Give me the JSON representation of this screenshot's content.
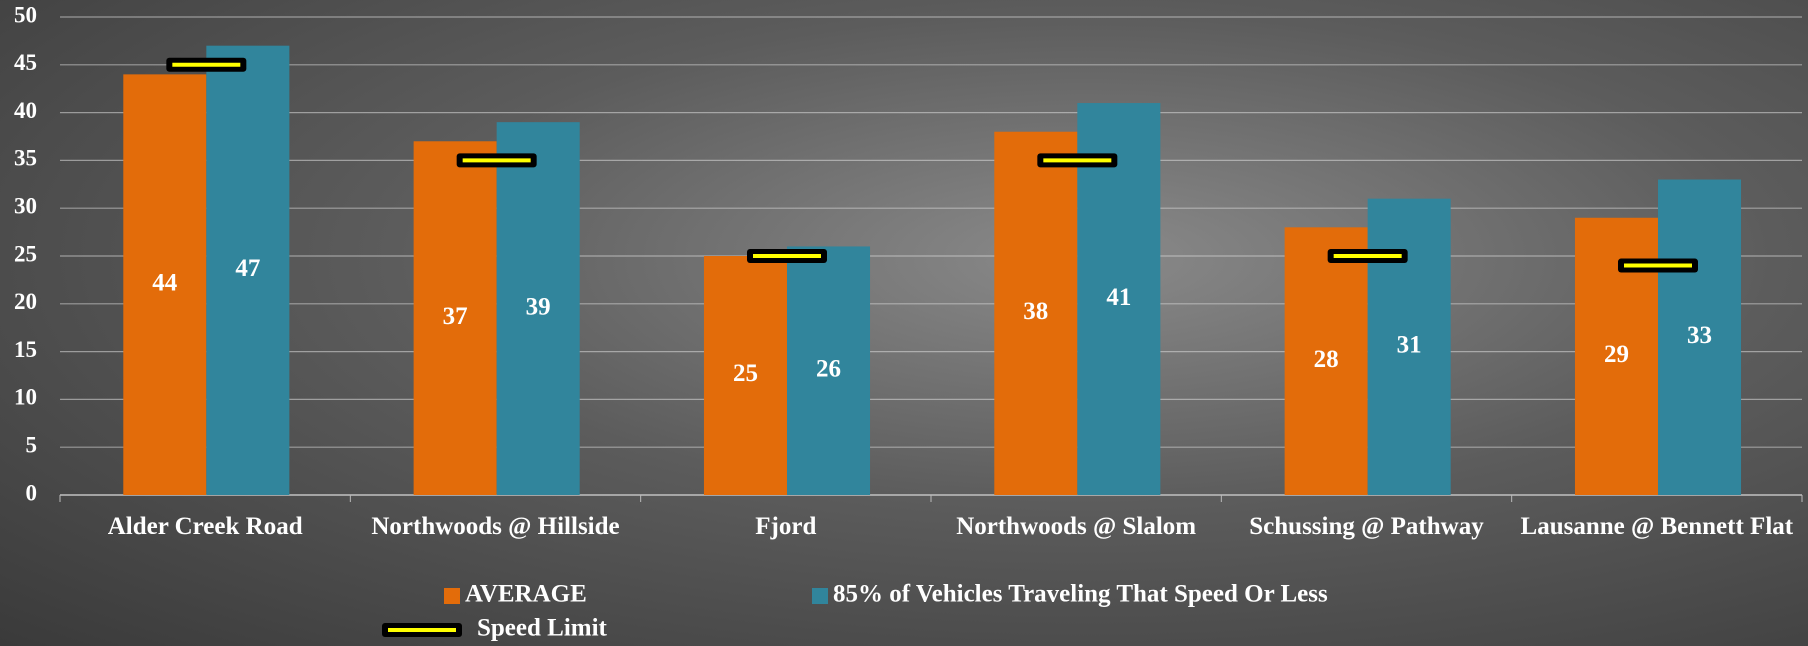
{
  "chart_data": {
    "type": "bar",
    "categories": [
      "Alder Creek Road",
      "Northwoods @ Hillside",
      "Fjord",
      "Northwoods @ Slalom",
      "Schussing @ Pathway",
      "Lausanne @ Bennett Flat"
    ],
    "series": [
      {
        "name": "AVERAGE",
        "color": "#e36c0a",
        "values": [
          44,
          37,
          25,
          38,
          28,
          29
        ]
      },
      {
        "name": "85% of Vehicles Traveling That Speed Or Less",
        "color": "#31859c",
        "values": [
          47,
          39,
          26,
          41,
          31,
          33
        ]
      },
      {
        "name": "Speed Limit",
        "color": "#ffff00",
        "type": "marker",
        "values": [
          45,
          35,
          25,
          35,
          25,
          24
        ]
      }
    ],
    "ylim": [
      0,
      50
    ],
    "yticks": [
      0,
      5,
      10,
      15,
      20,
      25,
      30,
      35,
      40,
      45,
      50
    ],
    "grid": true,
    "data_labels": true
  }
}
